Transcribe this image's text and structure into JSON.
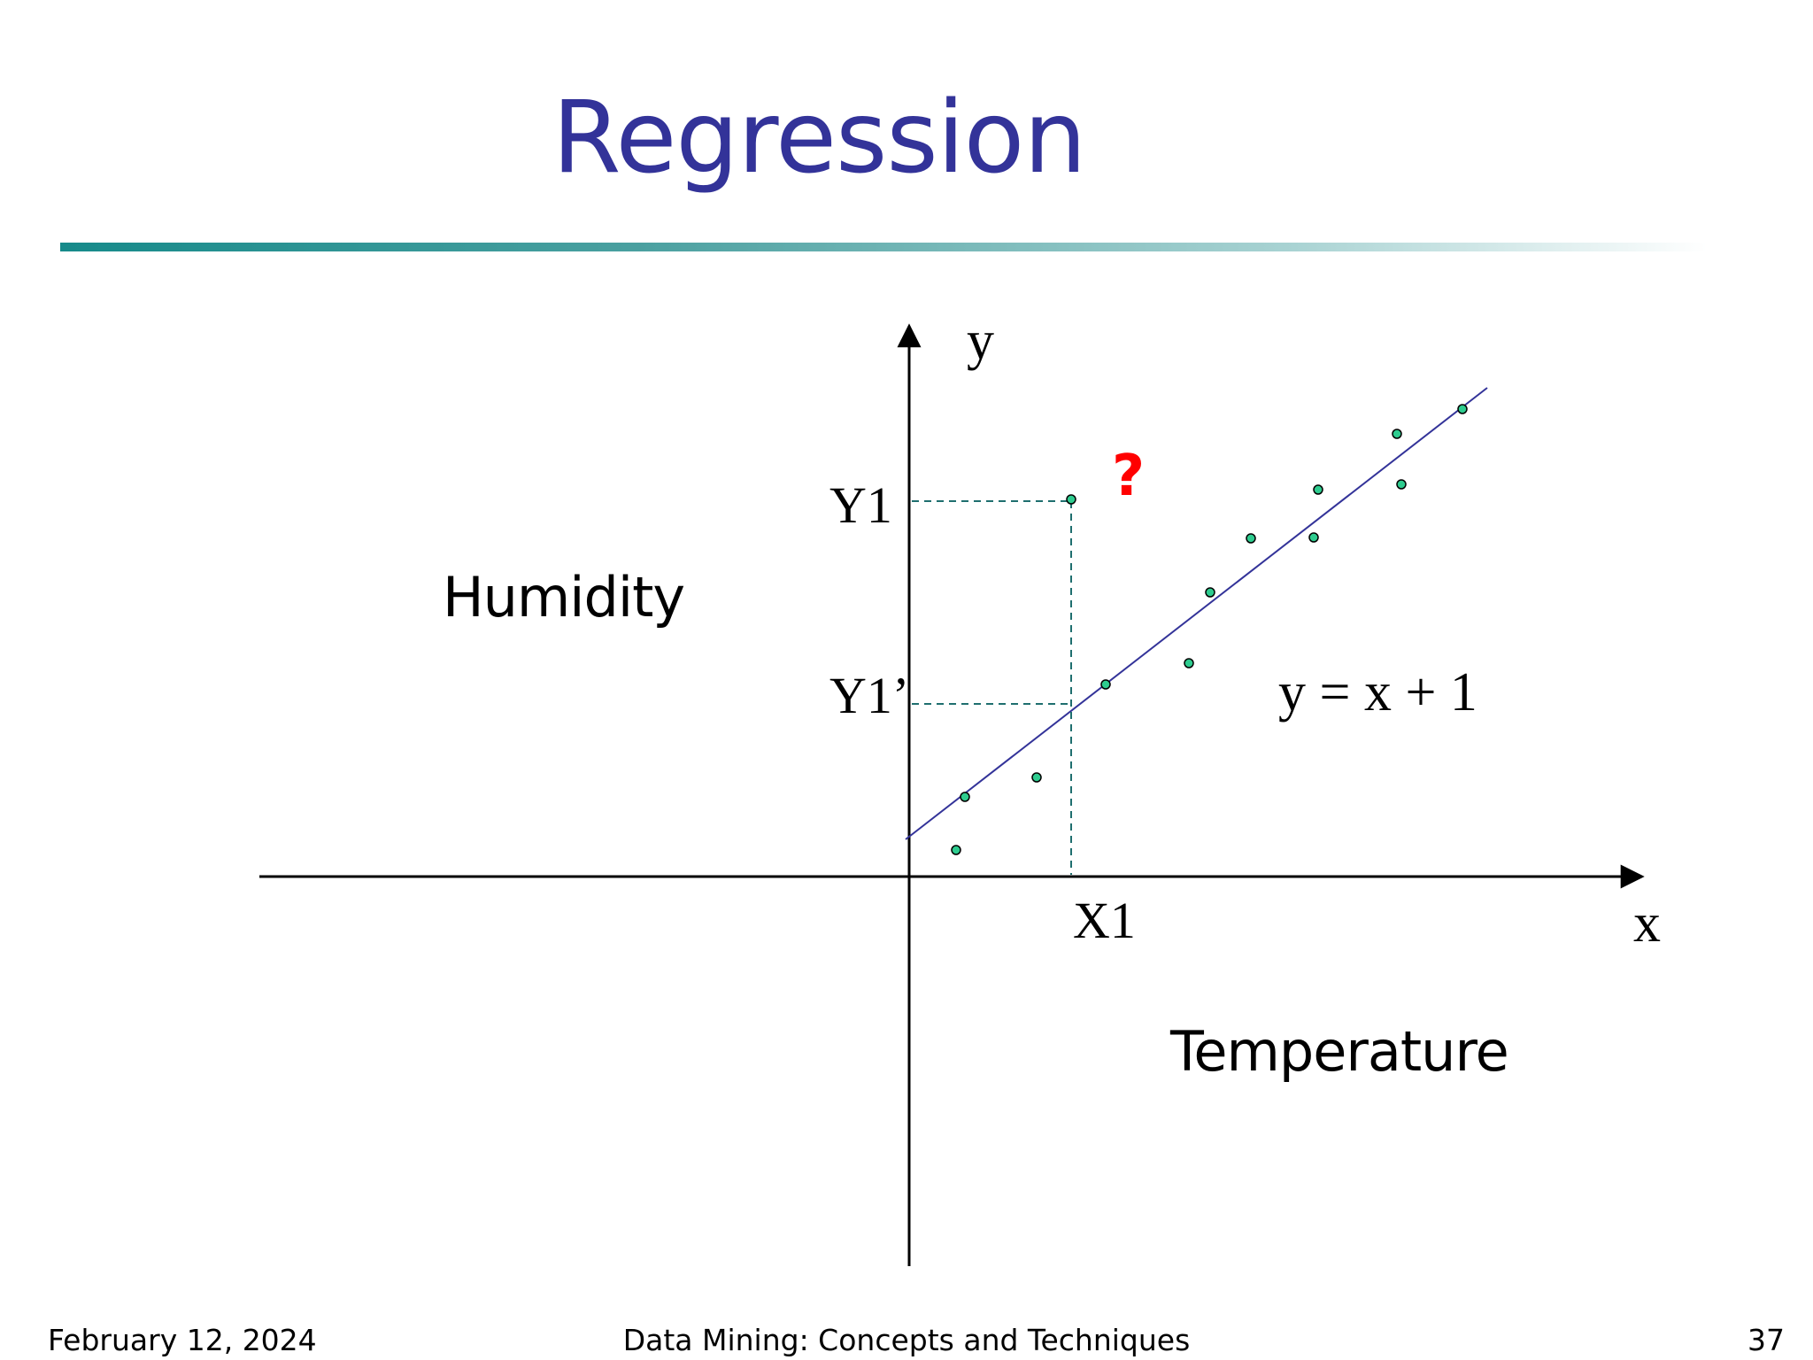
{
  "slide": {
    "title": "Regression"
  },
  "diagram": {
    "y_axis_label": "y",
    "x_axis_label": "x",
    "y_label_1": "Y1",
    "y_label_2": "Y1’",
    "x_label_1": "X1",
    "question_mark": "?",
    "equation": "y = x + 1",
    "dependent_caption": "Humidity",
    "independent_caption": "Temperature",
    "colors": {
      "points": "#2ecc8f",
      "line": "#333399",
      "guides": "#1f6f6f",
      "question": "#ff0000"
    }
  },
  "footer": {
    "date": "February 12, 2024",
    "course": "Data Mining: Concepts and Techniques",
    "page": "37"
  }
}
